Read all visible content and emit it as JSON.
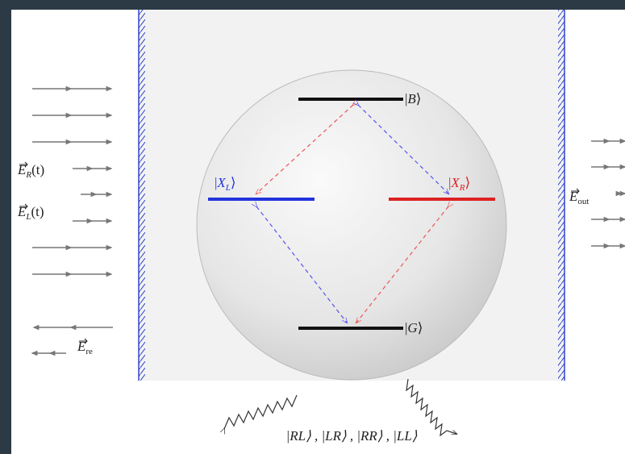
{
  "states": [
    {
      "pre": "|",
      "sym": "B",
      "sub": "",
      "post": "⟩"
    },
    {
      "pre": "|",
      "sym": "X",
      "sub": "L",
      "post": "⟩"
    },
    {
      "pre": "|",
      "sym": "X",
      "sub": "R",
      "post": "⟩"
    },
    {
      "pre": "|",
      "sym": "G",
      "sub": "",
      "post": "⟩"
    }
  ],
  "fields": [
    {
      "sym": "E",
      "sub": "R",
      "post": "(t)"
    },
    {
      "sym": "E",
      "sub": "L",
      "post": "(t)"
    },
    {
      "sym": "E",
      "sub": "out",
      "post": ""
    },
    {
      "sym": "E",
      "sub": "re",
      "post": ""
    }
  ],
  "emission": "|RL⟩ , |LR⟩ , |RR⟩ , |LL⟩"
}
